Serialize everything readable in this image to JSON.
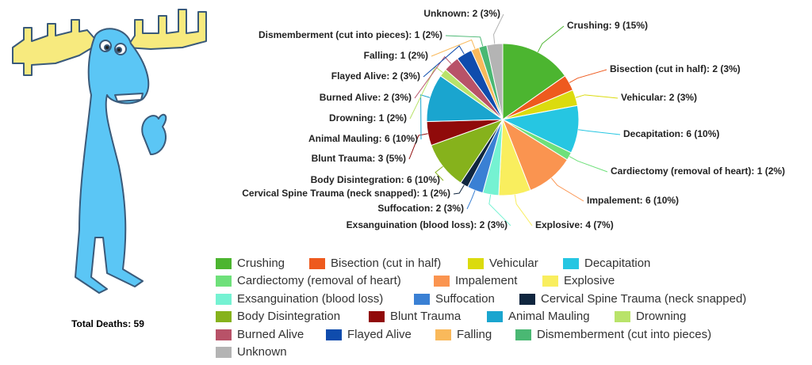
{
  "chart_data": {
    "type": "pie",
    "annotation": "Total Deaths: 59",
    "categories": [
      "Crushing",
      "Bisection (cut in half)",
      "Vehicular",
      "Decapitation",
      "Cardiectomy (removal of heart)",
      "Impalement",
      "Explosive",
      "Exsanguination (blood loss)",
      "Suffocation",
      "Cervical Spine Trauma (neck snapped)",
      "Body Disintegration",
      "Blunt Trauma",
      "Animal Mauling",
      "Drowning",
      "Burned Alive",
      "Flayed Alive",
      "Falling",
      "Dismemberment (cut into pieces)",
      "Unknown"
    ],
    "values": [
      9,
      2,
      2,
      6,
      1,
      6,
      4,
      2,
      2,
      1,
      6,
      3,
      6,
      1,
      2,
      2,
      1,
      1,
      2
    ],
    "value_labels": [
      "Crushing: 9 (15%)",
      "Bisection (cut in half): 2 (3%)",
      "Vehicular: 2 (3%)",
      "Decapitation: 6 (10%)",
      "Cardiectomy (removal of heart): 1 (2%)",
      "Impalement: 6 (10%)",
      "Explosive: 4 (7%)",
      "Exsanguination (blood loss): 2 (3%)",
      "Suffocation: 2 (3%)",
      "Cervical Spine Trauma (neck snapped): 1 (2%)",
      "Body Disintegration: 6 (10%)",
      "Blunt Trauma: 3 (5%)",
      "Animal Mauling: 6 (10%)",
      "Drowning: 1 (2%)",
      "Burned Alive: 2 (3%)",
      "Flayed Alive: 2 (3%)",
      "Falling: 1 (2%)",
      "Dismemberment (cut into pieces): 1 (2%)",
      "Unknown: 2 (3%)"
    ],
    "colors": [
      "#4cb530",
      "#ee5a1e",
      "#dbdb0e",
      "#26c6e2",
      "#6ee07a",
      "#fa9450",
      "#f9ee5e",
      "#75f2d2",
      "#3a80d4",
      "#10263f",
      "#86b21c",
      "#900a0a",
      "#1aa5cf",
      "#b9e36a",
      "#b85268",
      "#0f4cad",
      "#f9b95b",
      "#4ab873",
      "#b4b4b4"
    ]
  }
}
